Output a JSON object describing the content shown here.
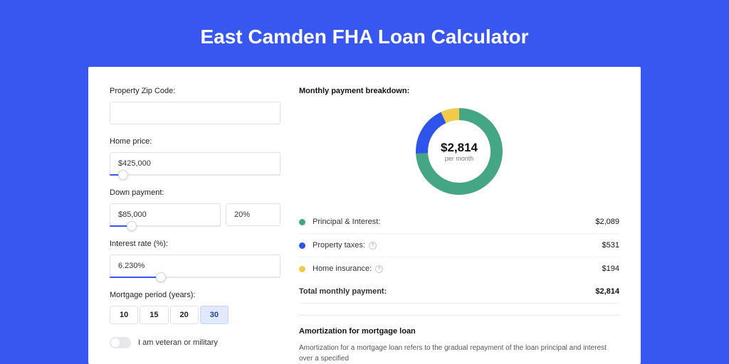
{
  "title": {
    "text": "East Camden FHA Loan Calculator",
    "fontsize": 28
  },
  "form": {
    "zip": {
      "label": "Property Zip Code:",
      "value": ""
    },
    "price": {
      "label": "Home price:",
      "value": "$425,000",
      "slider_pct": 8
    },
    "down": {
      "label": "Down payment:",
      "value": "$85,000",
      "pct": "20%",
      "slider_pct": 20
    },
    "rate": {
      "label": "Interest rate (%):",
      "value": "6.230%",
      "slider_pct": 30
    },
    "period": {
      "label": "Mortgage period (years):",
      "options": [
        "10",
        "15",
        "20",
        "30"
      ],
      "selected": "30"
    },
    "toggle": {
      "label": "I am veteran or military",
      "on": false
    }
  },
  "breakdown": {
    "title": "Monthly payment breakdown:",
    "center_amount": "$2,814",
    "center_sub": "per month",
    "items": [
      {
        "label": "Principal & Interest:",
        "value": "$2,089",
        "color": "#44a684",
        "pct": 74.2,
        "help": false
      },
      {
        "label": "Property taxes:",
        "value": "$531",
        "color": "#2f54eb",
        "pct": 18.9,
        "help": true
      },
      {
        "label": "Home insurance:",
        "value": "$194",
        "color": "#f1c94b",
        "pct": 6.9,
        "help": true
      }
    ],
    "total": {
      "label": "Total monthly payment:",
      "value": "$2,814"
    },
    "donut": {
      "bg": "#fff",
      "thickness": 17
    }
  },
  "amort": {
    "title": "Amortization for mortgage loan",
    "text": "Amortization for a mortgage loan refers to the gradual repayment of the loan principal and interest over a specified"
  },
  "colors": {
    "accent": "#3857f1"
  }
}
